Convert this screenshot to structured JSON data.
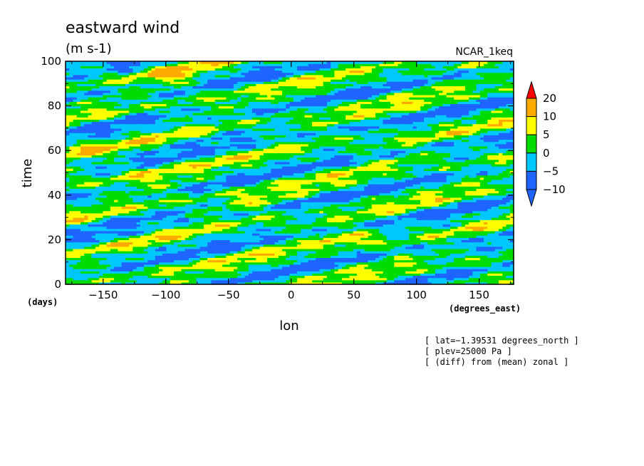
{
  "chart_data": {
    "type": "heatmap",
    "title": "eastward wind",
    "units": "(m s-1)",
    "dataset": "NCAR_1keq",
    "xlabel": "lon",
    "xunits": "(degrees_east)",
    "ylabel": "time",
    "yunits": "(days)",
    "xlim": [
      -180,
      177.5
    ],
    "ylim": [
      0,
      100
    ],
    "xticks": [
      -150,
      -100,
      -50,
      0,
      50,
      100,
      150
    ],
    "xtick_labels": [
      "−150",
      "−100",
      "−50",
      "0",
      "50",
      "100",
      "150"
    ],
    "yticks": [
      0,
      20,
      40,
      60,
      80,
      100
    ],
    "ytick_labels": [
      "0",
      "20",
      "40",
      "60",
      "80",
      "100"
    ],
    "colorbar": {
      "levels": [
        -10,
        -5,
        0,
        5,
        10,
        20
      ],
      "level_labels": [
        "−10",
        "−5",
        "0",
        "5",
        "10",
        "20"
      ],
      "colors": [
        "#1e64ff",
        "#1e64ff",
        "#00c8ff",
        "#00dc00",
        "#ffff00",
        "#ffaa00",
        "#ff0000",
        "#ff0000"
      ],
      "extend": "both"
    },
    "annotations": [
      "[ lat=−1.39531 degrees_north ]",
      "[ plev=25000 Pa ]",
      "[ (diff) from (mean) zonal ]"
    ]
  }
}
